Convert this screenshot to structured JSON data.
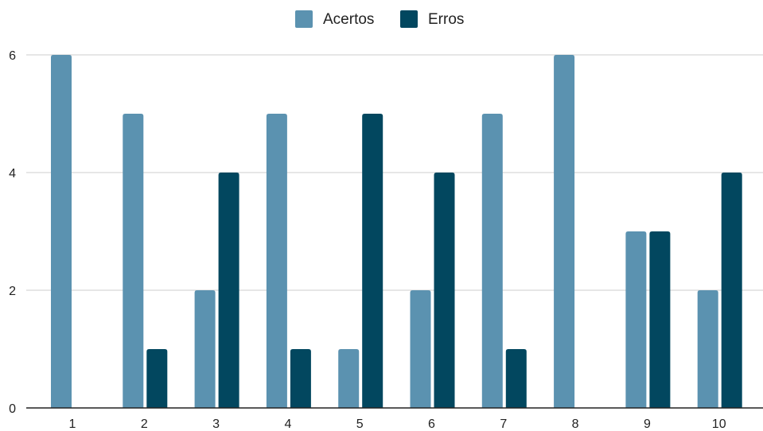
{
  "chart_data": {
    "type": "bar",
    "categories": [
      "1",
      "2",
      "3",
      "4",
      "5",
      "6",
      "7",
      "8",
      "9",
      "10"
    ],
    "series": [
      {
        "name": "Acertos",
        "color": "#5b92b0",
        "values": [
          6,
          5,
          2,
          5,
          1,
          2,
          5,
          6,
          3,
          2
        ]
      },
      {
        "name": "Erros",
        "color": "#02475f",
        "values": [
          0,
          1,
          4,
          1,
          5,
          4,
          1,
          0,
          3,
          4
        ]
      }
    ],
    "yticks": [
      "0",
      "2",
      "4",
      "6"
    ],
    "ylim": [
      0,
      6
    ],
    "grid": true,
    "legend_position": "top-center"
  }
}
